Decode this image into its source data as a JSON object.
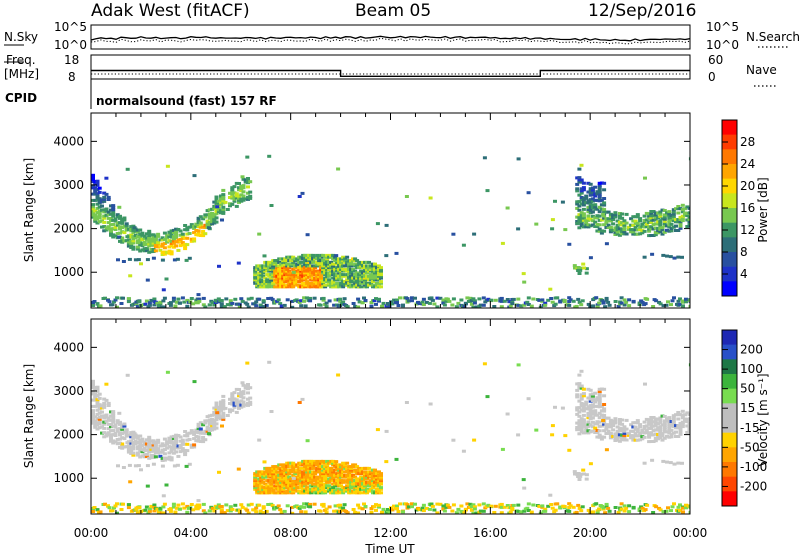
{
  "header": {
    "radar": "Adak West (fitACF)",
    "beam": "Beam 05",
    "date": "12/Sep/2016"
  },
  "strips": {
    "nsky_label": "N.Sky",
    "nsky_ticks": [
      "10^5",
      "10^0"
    ],
    "nsearch_label": "N.Search",
    "nsearch_ticks": [
      "10^5",
      "10^0"
    ],
    "freq_label_1": "Freq.",
    "freq_label_2": "[MHz]",
    "freq_ticks": [
      "18",
      "8"
    ],
    "nave_label": "Nave",
    "nave_ticks": [
      "60",
      "0"
    ],
    "cpid_label": "CPID",
    "cpid_text": "normalsound (fast) 157 RF",
    "freq_steps_hours": [
      [
        0,
        10.0,
        13.2
      ],
      [
        10.0,
        18.0,
        10.8
      ],
      [
        18.0,
        24,
        13.2
      ]
    ]
  },
  "chart_data": [
    {
      "type": "heatmap",
      "name": "power",
      "ylabel": "Slant Range [km]",
      "colorbar_label": "Power [dB]",
      "colorbar_ticks": [
        "28",
        "24",
        "20",
        "16",
        "12",
        "8",
        "4"
      ],
      "colorbar_colors": [
        "#ff0000",
        "#ff3c00",
        "#ff7800",
        "#ffa500",
        "#ffd700",
        "#c8e61e",
        "#78c850",
        "#3c9664",
        "#2d6e78",
        "#2850a0",
        "#1e32c8",
        "#0000ff"
      ],
      "ylim": [
        180,
        4650
      ],
      "y_ticks": [
        1000,
        2000,
        3000,
        4000
      ],
      "x_ticks": [
        "00:00",
        "04:00",
        "08:00",
        "12:00",
        "16:00",
        "20:00",
        "00:00"
      ],
      "xlim_hours": [
        0,
        24
      ],
      "regions": [
        {
          "x0": 0.0,
          "x1": 6.2,
          "y0": 1600,
          "y1": 3100,
          "dominant_db": 10
        },
        {
          "x0": 6.5,
          "x1": 11.5,
          "y0": 700,
          "y1": 1450,
          "dominant_db": 20
        },
        {
          "x0": 19.3,
          "x1": 24,
          "y0": 1700,
          "y1": 2900,
          "dominant_db": 12
        },
        {
          "x0": 0,
          "x1": 24,
          "y0": 200,
          "y1": 420,
          "dominant_db": 6
        }
      ]
    },
    {
      "type": "heatmap",
      "name": "velocity",
      "ylabel": "Slant Range [km]",
      "xlabel": "Time UT",
      "colorbar_label": "Velocity [m s⁻¹]",
      "colorbar_ticks": [
        "200",
        "100",
        "50",
        "15",
        "-15",
        "-50",
        "-100",
        "-200"
      ],
      "colorbar_colors": [
        "#1e28b4",
        "#2850c8",
        "#1e7846",
        "#3cb43c",
        "#78dc50",
        "#bebebe",
        "#bebebe",
        "#ffd200",
        "#ffa500",
        "#ff7800",
        "#ff4600",
        "#ff0000"
      ],
      "ylim": [
        180,
        4650
      ],
      "y_ticks": [
        1000,
        2000,
        3000,
        4000
      ],
      "x_ticks": [
        "00:00",
        "04:00",
        "08:00",
        "12:00",
        "16:00",
        "20:00",
        "00:00"
      ],
      "xlim_hours": [
        0,
        24
      ]
    }
  ]
}
